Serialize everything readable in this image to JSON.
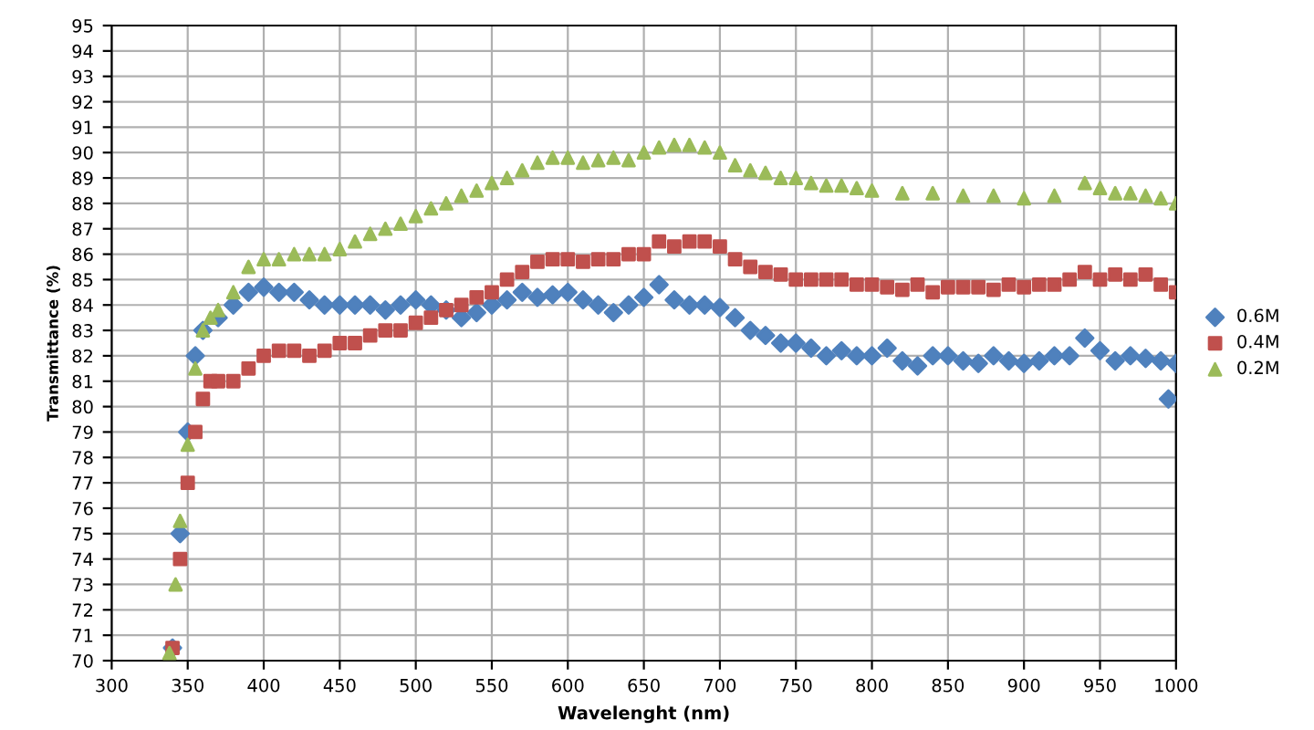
{
  "chart_data": {
    "type": "scatter",
    "xlabel": "Wavelenght (nm)",
    "ylabel": "Transmittance (%)",
    "xlim": [
      300,
      1000
    ],
    "xticks": [
      300,
      350,
      400,
      450,
      500,
      550,
      600,
      650,
      700,
      750,
      800,
      850,
      900,
      950,
      1000
    ],
    "ylim": [
      70,
      95
    ],
    "yticks": [
      70,
      71,
      72,
      73,
      74,
      75,
      76,
      77,
      78,
      79,
      80,
      81,
      82,
      83,
      84,
      85,
      86,
      87,
      88,
      89,
      90,
      91,
      92,
      93,
      94,
      95
    ],
    "grid": true,
    "legend": "right",
    "series": [
      {
        "name": "0.6M",
        "color": "#4f81bd",
        "marker": "diamond",
        "x": [
          340,
          345,
          350,
          355,
          360,
          370,
          380,
          390,
          400,
          410,
          420,
          430,
          440,
          450,
          460,
          470,
          480,
          490,
          500,
          510,
          520,
          530,
          540,
          550,
          560,
          570,
          580,
          590,
          600,
          610,
          620,
          630,
          640,
          650,
          660,
          670,
          680,
          690,
          700,
          710,
          720,
          730,
          740,
          750,
          760,
          770,
          780,
          790,
          800,
          810,
          820,
          830,
          840,
          850,
          860,
          870,
          880,
          890,
          900,
          910,
          920,
          930,
          940,
          950,
          960,
          970,
          980,
          990,
          995,
          1000
        ],
        "values": [
          70.5,
          75,
          79,
          82,
          83,
          83.5,
          84,
          84.5,
          84.7,
          84.5,
          84.5,
          84.2,
          84,
          84,
          84,
          84,
          83.8,
          84,
          84.2,
          84,
          83.8,
          83.5,
          83.7,
          84,
          84.2,
          84.5,
          84.3,
          84.4,
          84.5,
          84.2,
          84,
          83.7,
          84,
          84.3,
          84.8,
          84.2,
          84,
          84,
          83.9,
          83.5,
          83,
          82.8,
          82.5,
          82.5,
          82.3,
          82,
          82.2,
          82,
          82,
          82.3,
          81.8,
          81.6,
          82,
          82,
          81.8,
          81.7,
          82,
          81.8,
          81.7,
          81.8,
          82,
          82,
          82.7,
          82.2,
          81.8,
          82,
          81.9,
          81.8,
          80.3,
          81.7
        ]
      },
      {
        "name": "0.4M",
        "color": "#c0504d",
        "marker": "square",
        "x": [
          340,
          345,
          350,
          355,
          360,
          365,
          370,
          380,
          390,
          400,
          410,
          420,
          430,
          440,
          450,
          460,
          470,
          480,
          490,
          500,
          510,
          520,
          530,
          540,
          550,
          560,
          570,
          580,
          590,
          600,
          610,
          620,
          630,
          640,
          650,
          660,
          670,
          680,
          690,
          700,
          710,
          720,
          730,
          740,
          750,
          760,
          770,
          780,
          790,
          800,
          810,
          820,
          830,
          840,
          850,
          860,
          870,
          880,
          890,
          900,
          910,
          920,
          930,
          940,
          950,
          960,
          970,
          980,
          990,
          1000
        ],
        "values": [
          70.5,
          74,
          77,
          79,
          80.3,
          81,
          81,
          81,
          81.5,
          82,
          82.2,
          82.2,
          82,
          82.2,
          82.5,
          82.5,
          82.8,
          83,
          83,
          83.3,
          83.5,
          83.8,
          84,
          84.3,
          84.5,
          85,
          85.3,
          85.7,
          85.8,
          85.8,
          85.7,
          85.8,
          85.8,
          86,
          86,
          86.5,
          86.3,
          86.5,
          86.5,
          86.3,
          85.8,
          85.5,
          85.3,
          85.2,
          85,
          85,
          85,
          85,
          84.8,
          84.8,
          84.7,
          84.6,
          84.8,
          84.5,
          84.7,
          84.7,
          84.7,
          84.6,
          84.8,
          84.7,
          84.8,
          84.8,
          85,
          85.3,
          85,
          85.2,
          85,
          85.2,
          84.8,
          84.5
        ]
      },
      {
        "name": "0.2M",
        "color": "#9bbb59",
        "marker": "triangle",
        "x": [
          338,
          342,
          345,
          350,
          355,
          360,
          365,
          370,
          380,
          390,
          400,
          410,
          420,
          430,
          440,
          450,
          460,
          470,
          480,
          490,
          500,
          510,
          520,
          530,
          540,
          550,
          560,
          570,
          580,
          590,
          600,
          610,
          620,
          630,
          640,
          650,
          660,
          670,
          680,
          690,
          700,
          710,
          720,
          730,
          740,
          750,
          760,
          770,
          780,
          790,
          800,
          820,
          840,
          860,
          880,
          900,
          920,
          940,
          950,
          960,
          970,
          980,
          990,
          1000
        ],
        "values": [
          70.3,
          73,
          75.5,
          78.5,
          81.5,
          83,
          83.5,
          83.8,
          84.5,
          85.5,
          85.8,
          85.8,
          86,
          86,
          86,
          86.2,
          86.5,
          86.8,
          87,
          87.2,
          87.5,
          87.8,
          88,
          88.3,
          88.5,
          88.8,
          89,
          89.3,
          89.6,
          89.8,
          89.8,
          89.6,
          89.7,
          89.8,
          89.7,
          90,
          90.2,
          90.3,
          90.3,
          90.2,
          90,
          89.5,
          89.3,
          89.2,
          89,
          89,
          88.8,
          88.7,
          88.7,
          88.6,
          88.5,
          88.4,
          88.4,
          88.3,
          88.3,
          88.2,
          88.3,
          88.8,
          88.6,
          88.4,
          88.4,
          88.3,
          88.2,
          88
        ]
      }
    ]
  }
}
